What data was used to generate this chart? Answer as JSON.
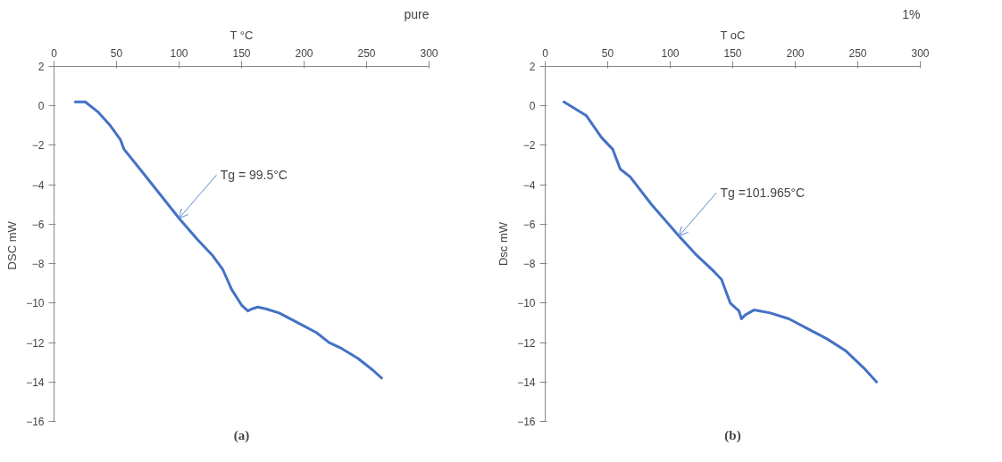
{
  "chart_data": [
    {
      "type": "line",
      "xlabel": "T °C",
      "ylabel": "DSC  mW",
      "subtitle": "pure",
      "annotations": [
        {
          "text": "Tg = 99.5°C",
          "x": 100,
          "y": -5.7
        },
        "(a)"
      ],
      "xlim": [
        0,
        300
      ],
      "xticks": [
        0,
        50,
        100,
        150,
        200,
        250,
        300
      ],
      "ylim": [
        -16,
        2
      ],
      "yticks": [
        -16,
        -14,
        -12,
        -10,
        -8,
        -6,
        -4,
        -2,
        0,
        2
      ],
      "grid": false,
      "series": [
        {
          "color": "#4472c4",
          "x": [
            17,
            25,
            35,
            45,
            53,
            56,
            70,
            85,
            100,
            115,
            127,
            135,
            142,
            150,
            155,
            158,
            163,
            170,
            180,
            195,
            210,
            220,
            230,
            243,
            255,
            262
          ],
          "values": [
            0.2,
            0.2,
            -0.3,
            -1,
            -1.7,
            -2.2,
            -3.3,
            -4.5,
            -5.7,
            -6.8,
            -7.6,
            -8.3,
            -9.3,
            -10.1,
            -10.4,
            -10.3,
            -10.2,
            -10.3,
            -10.5,
            -11.0,
            -11.5,
            -12.0,
            -12.3,
            -12.8,
            -13.4,
            -13.8
          ]
        }
      ]
    },
    {
      "type": "line",
      "xlabel": "T oC",
      "ylabel": "Dsc mW",
      "subtitle": "1%",
      "annotations": [
        {
          "text": "Tg =101.965°C",
          "x": 107,
          "y": -6.6
        },
        "(b)"
      ],
      "xlim": [
        0,
        300
      ],
      "xticks": [
        0,
        50,
        100,
        150,
        200,
        250,
        300
      ],
      "ylim": [
        -16,
        2
      ],
      "yticks": [
        -16,
        -14,
        -12,
        -10,
        -8,
        -6,
        -4,
        -2,
        0,
        2
      ],
      "grid": false,
      "series": [
        {
          "color": "#4472c4",
          "x": [
            15,
            33,
            45,
            54,
            60,
            68,
            85,
            107,
            120,
            135,
            141,
            148,
            155,
            157,
            160,
            167,
            180,
            195,
            210,
            225,
            240,
            255,
            265
          ],
          "values": [
            0.2,
            -0.5,
            -1.6,
            -2.2,
            -3.2,
            -3.6,
            -5.0,
            -6.6,
            -7.5,
            -8.4,
            -8.8,
            -10.0,
            -10.4,
            -10.8,
            -10.6,
            -10.35,
            -10.5,
            -10.8,
            -11.3,
            -11.8,
            -12.4,
            -13.3,
            -14.0
          ]
        }
      ]
    }
  ]
}
